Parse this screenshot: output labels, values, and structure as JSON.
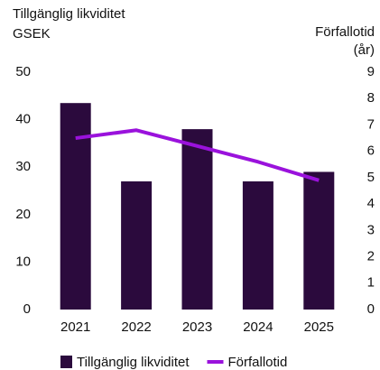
{
  "chart_data": {
    "type": "bar",
    "ylabel": "Tillgänglig likviditet",
    "yunit": "GSEK",
    "y2label": "Förfallotid",
    "y2unit": "(år)",
    "categories": [
      "2021",
      "2022",
      "2023",
      "2024",
      "2025"
    ],
    "series": [
      {
        "name": "Tillgänglig likviditet",
        "type": "bar",
        "color": "#2b0a3d",
        "values": [
          43.5,
          27,
          38,
          27,
          29
        ]
      },
      {
        "name": "Förfallotid",
        "type": "line",
        "axis": "y2",
        "color": "#9a12dc",
        "values": [
          6.5,
          6.8,
          6.2,
          5.6,
          4.9
        ]
      }
    ],
    "ylim": [
      0,
      50
    ],
    "yticks": [
      0,
      10,
      20,
      30,
      40,
      50
    ],
    "y2lim": [
      0,
      9
    ],
    "y2ticks": [
      0,
      1,
      2,
      3,
      4,
      5,
      6,
      7,
      8,
      9
    ],
    "grid": false
  }
}
